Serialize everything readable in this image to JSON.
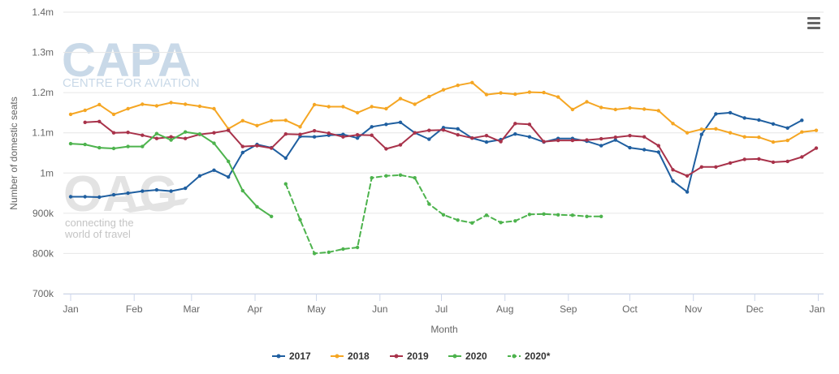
{
  "watermarks": {
    "capa_logo": "CAPA",
    "capa_sub": "CENTRE FOR AVIATION",
    "oag_logo": "OAG",
    "oag_tagline_1": "connecting the",
    "oag_tagline_2": "world of travel"
  },
  "menu_icon": "hamburger-menu-icon",
  "chart_data": {
    "type": "line",
    "title": "",
    "xlabel": "Month",
    "ylabel": "Number of domestic seats",
    "x_unit": "week of year",
    "xlim": [
      1,
      53
    ],
    "ylim": [
      700000,
      1400000
    ],
    "grid": true,
    "legend_position": "bottom-center",
    "x_ticks": [
      {
        "label": "Jan",
        "x": 1
      },
      {
        "label": "Feb",
        "x": 5.43
      },
      {
        "label": "Mar",
        "x": 9.43
      },
      {
        "label": "Apr",
        "x": 13.86
      },
      {
        "label": "May",
        "x": 18.14
      },
      {
        "label": "Jun",
        "x": 22.57
      },
      {
        "label": "Jul",
        "x": 26.86
      },
      {
        "label": "Aug",
        "x": 31.29
      },
      {
        "label": "Sep",
        "x": 35.71
      },
      {
        "label": "Oct",
        "x": 40
      },
      {
        "label": "Nov",
        "x": 44.43
      },
      {
        "label": "Dec",
        "x": 48.71
      },
      {
        "label": "Jan",
        "x": 53.14
      }
    ],
    "y_ticks": [
      {
        "label": "700k",
        "value": 700000
      },
      {
        "label": "800k",
        "value": 800000
      },
      {
        "label": "900k",
        "value": 900000
      },
      {
        "label": "1m",
        "value": 1000000
      },
      {
        "label": "1.1m",
        "value": 1100000
      },
      {
        "label": "1.2m",
        "value": 1200000
      },
      {
        "label": "1.3m",
        "value": 1300000
      },
      {
        "label": "1.4m",
        "value": 1400000
      }
    ],
    "series": [
      {
        "name": "2017",
        "color": "#1f5fa0",
        "dashed": false,
        "x_start": 1,
        "values": [
          941000,
          941000,
          940000,
          946000,
          950000,
          955000,
          958000,
          955000,
          962000,
          993000,
          1007000,
          990000,
          1051000,
          1071000,
          1063000,
          1037000,
          1091000,
          1090000,
          1094000,
          1096000,
          1087000,
          1115000,
          1121000,
          1126000,
          1100000,
          1084000,
          1113000,
          1110000,
          1087000,
          1077000,
          1083000,
          1097000,
          1090000,
          1077000,
          1086000,
          1086000,
          1079000,
          1068000,
          1082000,
          1063000,
          1058000,
          1052000,
          980000,
          953000,
          1096000,
          1147000,
          1150000,
          1137000,
          1132000,
          1122000,
          1112000,
          1131000
        ]
      },
      {
        "name": "2018",
        "color": "#f5a623",
        "dashed": false,
        "x_start": 1,
        "values": [
          1146000,
          1156000,
          1170000,
          1146000,
          1160000,
          1171000,
          1167000,
          1175000,
          1171000,
          1166000,
          1160000,
          1110000,
          1130000,
          1118000,
          1130000,
          1131000,
          1115000,
          1170000,
          1165000,
          1165000,
          1150000,
          1165000,
          1160000,
          1185000,
          1171000,
          1190000,
          1207000,
          1218000,
          1225000,
          1195000,
          1199000,
          1196000,
          1201000,
          1200000,
          1189000,
          1158000,
          1177000,
          1163000,
          1158000,
          1162000,
          1159000,
          1155000,
          1123000,
          1100000,
          1109000,
          1110000,
          1100000,
          1090000,
          1089000,
          1077000,
          1081000,
          1102000,
          1106000
        ]
      },
      {
        "name": "2019",
        "color": "#a8324a",
        "dashed": false,
        "x_start": 2,
        "values": [
          1126000,
          1128000,
          1100000,
          1101000,
          1094000,
          1086000,
          1090000,
          1086000,
          1096000,
          1100000,
          1106000,
          1066000,
          1068000,
          1062000,
          1097000,
          1096000,
          1105000,
          1099000,
          1090000,
          1095000,
          1094000,
          1060000,
          1070000,
          1100000,
          1106000,
          1107000,
          1095000,
          1087000,
          1093000,
          1078000,
          1123000,
          1121000,
          1078000,
          1081000,
          1081000,
          1082000,
          1085000,
          1089000,
          1093000,
          1090000,
          1068000,
          1008000,
          993000,
          1015000,
          1015000,
          1025000,
          1034000,
          1035000,
          1027000,
          1029000,
          1040000,
          1062000
        ]
      },
      {
        "name": "2020",
        "color": "#4db34d",
        "dashed": false,
        "x_start": 1,
        "values": [
          1073000,
          1071000,
          1063000,
          1061000,
          1066000,
          1066000,
          1098000,
          1082000,
          1102000,
          1097000,
          1074000,
          1029000,
          956000,
          916000,
          892000
        ]
      },
      {
        "name": "2020*",
        "color": "#4db34d",
        "dashed": true,
        "x_start": 16,
        "values": [
          973000,
          884000,
          800000,
          803000,
          811000,
          815000,
          988000,
          993000,
          995000,
          988000,
          923000,
          896000,
          883000,
          876000,
          895000,
          877000,
          881000,
          897000,
          898000,
          896000,
          895000,
          892000,
          892000
        ]
      }
    ]
  }
}
